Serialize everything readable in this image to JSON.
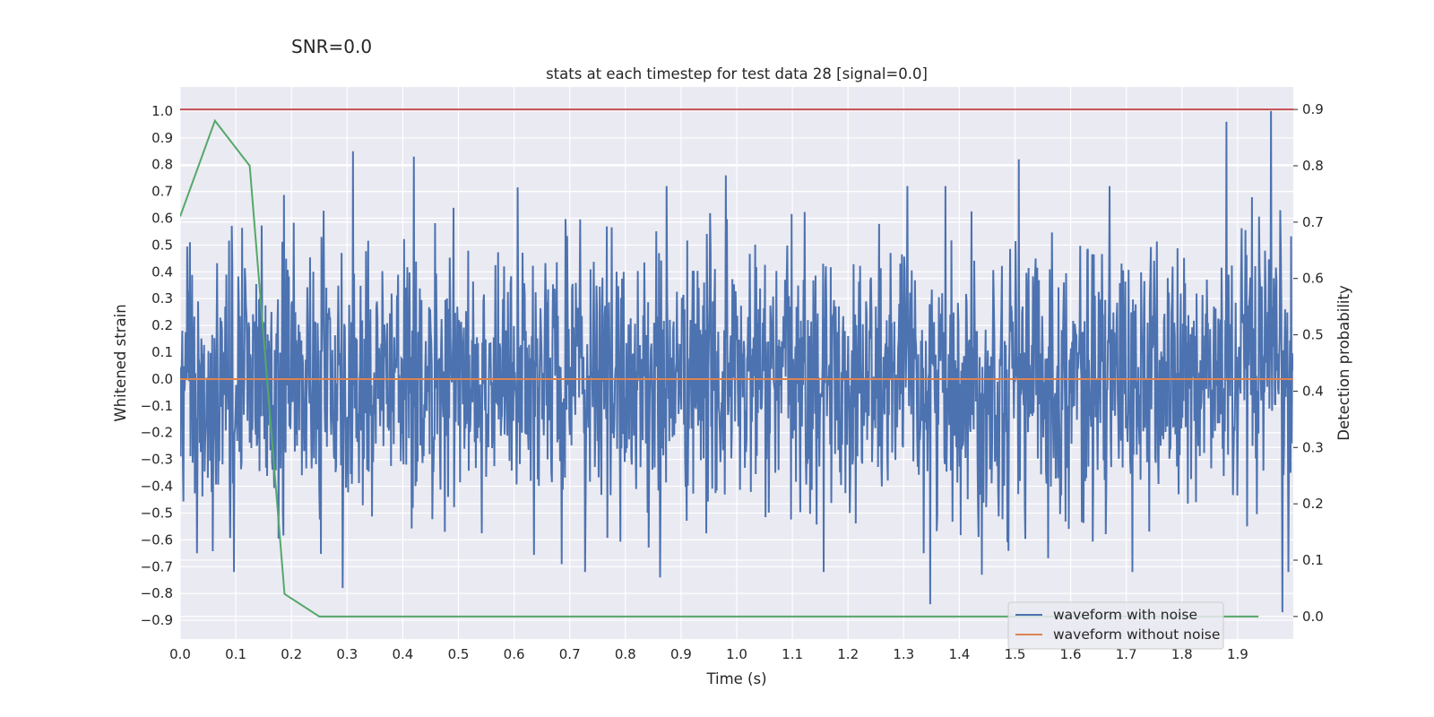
{
  "suptitle": "SNR=0.0",
  "chart_data": {
    "type": "line",
    "title": "stats at each timestep for test data 28 [signal=0.0]",
    "xlabel": "Time (s)",
    "ylabel": "Whitened strain",
    "y2label": "Detection probability",
    "xlim": [
      0.0,
      2.0
    ],
    "ylim": [
      -0.97,
      1.09
    ],
    "y2lim": [
      -0.04,
      0.94
    ],
    "xticks": [
      "0.0",
      "0.1",
      "0.2",
      "0.3",
      "0.4",
      "0.5",
      "0.6",
      "0.7",
      "0.8",
      "0.9",
      "1.0",
      "1.1",
      "1.2",
      "1.3",
      "1.4",
      "1.5",
      "1.6",
      "1.7",
      "1.8",
      "1.9"
    ],
    "yticks": [
      "1.0",
      "0.9",
      "0.8",
      "0.7",
      "0.6",
      "0.5",
      "0.4",
      "0.3",
      "0.2",
      "0.1",
      "0.0",
      "−0.1",
      "−0.2",
      "−0.3",
      "−0.4",
      "−0.5",
      "−0.6",
      "−0.7",
      "−0.8",
      "−0.9"
    ],
    "y2ticks": [
      "0.9",
      "0.8",
      "0.7",
      "0.6",
      "0.5",
      "0.4",
      "0.3",
      "0.2",
      "0.1",
      "0.0"
    ],
    "grid": true,
    "legend_position": "lower-right",
    "colors": {
      "noise": "#4c72b0",
      "clean": "#dd8452",
      "probability": "#55a868",
      "threshold": "#c44e52",
      "background": "#eaeaf2",
      "grid": "#ffffff"
    },
    "series": [
      {
        "name": "waveform with noise",
        "axis": "left",
        "kind": "noisy-strain",
        "samples": 2048,
        "dt": 0.0009765625,
        "std": 0.25,
        "extremes": [
          {
            "x": 0.311,
            "y": 0.85
          },
          {
            "x": 0.42,
            "y": 0.83
          },
          {
            "x": 0.98,
            "y": 0.76
          },
          {
            "x": 1.507,
            "y": 0.82
          },
          {
            "x": 1.88,
            "y": 0.96
          },
          {
            "x": 1.96,
            "y": 1.0
          },
          {
            "x": 1.348,
            "y": -0.84
          },
          {
            "x": 0.292,
            "y": -0.78
          },
          {
            "x": 0.862,
            "y": -0.74
          },
          {
            "x": 1.98,
            "y": -0.87
          },
          {
            "x": 1.44,
            "y": -0.73
          },
          {
            "x": 0.03,
            "y": -0.65
          }
        ]
      },
      {
        "name": "waveform without noise",
        "axis": "left",
        "x": [
          0.0,
          2.0
        ],
        "values": [
          0.0,
          0.0
        ]
      },
      {
        "axis": "right",
        "x": [
          0.0,
          0.0625,
          0.125,
          0.1875,
          0.25,
          0.3125,
          0.375,
          0.4375,
          0.5,
          0.5625,
          0.625,
          0.6875,
          0.75,
          0.8125,
          0.875,
          0.9375,
          1.0,
          1.0625,
          1.125,
          1.1875,
          1.25,
          1.3125,
          1.375,
          1.4375,
          1.5,
          1.5625,
          1.625,
          1.6875,
          1.75,
          1.8125,
          1.875,
          1.9375
        ],
        "values": [
          0.71,
          0.88,
          0.8,
          0.04,
          0.0,
          0.0,
          0.0,
          0.0,
          0.0,
          0.0,
          0.0,
          0.0,
          0.0,
          0.0,
          0.0,
          0.0,
          0.0,
          0.0,
          0.0,
          0.0,
          0.0,
          0.0,
          0.0,
          0.0,
          0.0,
          0.0,
          0.0,
          0.0,
          0.0,
          0.0,
          0.0,
          0.0
        ]
      },
      {
        "axis": "right",
        "kind": "threshold",
        "x": [
          0.0,
          2.0
        ],
        "values": [
          0.9,
          0.9
        ]
      }
    ]
  }
}
